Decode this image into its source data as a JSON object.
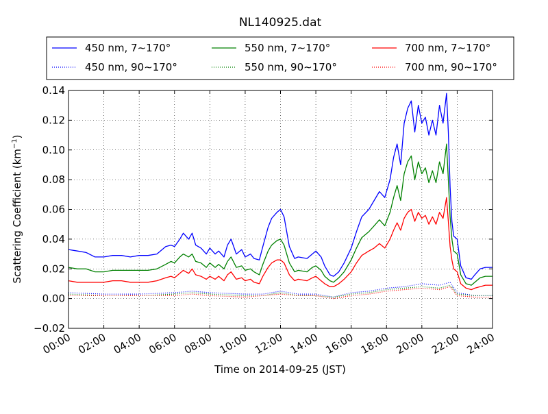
{
  "chart_data": {
    "type": "line",
    "title": "NL140925.dat",
    "xlabel": "Time on 2014-09-25 (JST)",
    "ylabel": "Scattering Coefficient (km",
    "ylabel_sup": "−1",
    "ylabel_end": ")",
    "xlim": [
      0,
      24
    ],
    "ylim": [
      -0.02,
      0.14
    ],
    "grid": true,
    "legend_position": "top (outside, above plot)",
    "x_ticks": [
      {
        "value": 0,
        "label": "00:00"
      },
      {
        "value": 2,
        "label": "02:00"
      },
      {
        "value": 4,
        "label": "04:00"
      },
      {
        "value": 6,
        "label": "06:00"
      },
      {
        "value": 8,
        "label": "08:00"
      },
      {
        "value": 10,
        "label": "10:00"
      },
      {
        "value": 12,
        "label": "12:00"
      },
      {
        "value": 14,
        "label": "14:00"
      },
      {
        "value": 16,
        "label": "16:00"
      },
      {
        "value": 18,
        "label": "18:00"
      },
      {
        "value": 20,
        "label": "20:00"
      },
      {
        "value": 22,
        "label": "22:00"
      },
      {
        "value": 24,
        "label": "24:00"
      }
    ],
    "y_ticks": [
      {
        "value": -0.02,
        "label": "−0.02"
      },
      {
        "value": 0.0,
        "label": "0.00"
      },
      {
        "value": 0.02,
        "label": "0.02"
      },
      {
        "value": 0.04,
        "label": "0.04"
      },
      {
        "value": 0.06,
        "label": "0.06"
      },
      {
        "value": 0.08,
        "label": "0.08"
      },
      {
        "value": 0.1,
        "label": "0.10"
      },
      {
        "value": 0.12,
        "label": "0.12"
      },
      {
        "value": 0.14,
        "label": "0.14"
      }
    ],
    "series": [
      {
        "name": "450 nm, 7∼170°",
        "color": "#0000ff",
        "style": "solid",
        "x": [
          0,
          0.5,
          1,
          1.5,
          2,
          2.5,
          3,
          3.5,
          4,
          4.5,
          5,
          5.5,
          5.8,
          6,
          6.3,
          6.5,
          6.8,
          7,
          7.2,
          7.5,
          7.8,
          8,
          8.3,
          8.5,
          8.8,
          9,
          9.2,
          9.5,
          9.8,
          10,
          10.3,
          10.5,
          10.8,
          11,
          11.3,
          11.5,
          11.8,
          12,
          12.2,
          12.5,
          12.8,
          13,
          13.5,
          13.8,
          14,
          14.3,
          14.5,
          14.8,
          15,
          15.3,
          15.6,
          16,
          16.3,
          16.6,
          17,
          17.3,
          17.6,
          17.9,
          18.2,
          18.4,
          18.6,
          18.8,
          19.0,
          19.2,
          19.4,
          19.6,
          19.8,
          20.0,
          20.2,
          20.4,
          20.6,
          20.8,
          21.0,
          21.2,
          21.4,
          21.5,
          21.6,
          21.7,
          21.8,
          22.0,
          22.2,
          22.5,
          22.8,
          23.0,
          23.3,
          23.6,
          24
        ],
        "y": [
          0.033,
          0.032,
          0.031,
          0.028,
          0.028,
          0.029,
          0.029,
          0.028,
          0.029,
          0.029,
          0.03,
          0.035,
          0.036,
          0.035,
          0.04,
          0.044,
          0.04,
          0.044,
          0.036,
          0.034,
          0.03,
          0.034,
          0.03,
          0.032,
          0.028,
          0.036,
          0.04,
          0.03,
          0.033,
          0.028,
          0.03,
          0.027,
          0.026,
          0.035,
          0.048,
          0.054,
          0.058,
          0.06,
          0.055,
          0.035,
          0.027,
          0.028,
          0.027,
          0.03,
          0.032,
          0.028,
          0.022,
          0.016,
          0.015,
          0.018,
          0.024,
          0.034,
          0.045,
          0.055,
          0.06,
          0.066,
          0.072,
          0.068,
          0.08,
          0.095,
          0.104,
          0.09,
          0.118,
          0.128,
          0.133,
          0.112,
          0.13,
          0.118,
          0.122,
          0.11,
          0.12,
          0.11,
          0.13,
          0.118,
          0.138,
          0.112,
          0.075,
          0.052,
          0.042,
          0.04,
          0.022,
          0.014,
          0.013,
          0.016,
          0.02,
          0.021,
          0.021
        ]
      },
      {
        "name": "550 nm, 7∼170°",
        "color": "#008000",
        "style": "solid",
        "x": [
          0,
          0.5,
          1,
          1.5,
          2,
          2.5,
          3,
          3.5,
          4,
          4.5,
          5,
          5.5,
          5.8,
          6,
          6.3,
          6.5,
          6.8,
          7,
          7.2,
          7.5,
          7.8,
          8,
          8.3,
          8.5,
          8.8,
          9,
          9.2,
          9.5,
          9.8,
          10,
          10.3,
          10.5,
          10.8,
          11,
          11.3,
          11.5,
          11.8,
          12,
          12.2,
          12.5,
          12.8,
          13,
          13.5,
          13.8,
          14,
          14.3,
          14.5,
          14.8,
          15,
          15.3,
          15.6,
          16,
          16.3,
          16.6,
          17,
          17.3,
          17.6,
          17.9,
          18.2,
          18.4,
          18.6,
          18.8,
          19.0,
          19.2,
          19.4,
          19.6,
          19.8,
          20.0,
          20.2,
          20.4,
          20.6,
          20.8,
          21.0,
          21.2,
          21.4,
          21.5,
          21.6,
          21.7,
          21.8,
          22.0,
          22.2,
          22.5,
          22.8,
          23.0,
          23.3,
          23.6,
          24
        ],
        "y": [
          0.021,
          0.02,
          0.02,
          0.018,
          0.018,
          0.019,
          0.019,
          0.019,
          0.019,
          0.019,
          0.02,
          0.023,
          0.025,
          0.024,
          0.028,
          0.03,
          0.028,
          0.03,
          0.025,
          0.024,
          0.021,
          0.024,
          0.021,
          0.023,
          0.02,
          0.025,
          0.028,
          0.021,
          0.022,
          0.019,
          0.02,
          0.018,
          0.016,
          0.023,
          0.032,
          0.036,
          0.039,
          0.04,
          0.036,
          0.024,
          0.018,
          0.019,
          0.018,
          0.021,
          0.022,
          0.019,
          0.015,
          0.012,
          0.011,
          0.014,
          0.018,
          0.026,
          0.034,
          0.041,
          0.045,
          0.049,
          0.053,
          0.049,
          0.058,
          0.068,
          0.076,
          0.066,
          0.084,
          0.092,
          0.096,
          0.08,
          0.092,
          0.084,
          0.088,
          0.078,
          0.086,
          0.078,
          0.092,
          0.084,
          0.104,
          0.08,
          0.055,
          0.04,
          0.032,
          0.03,
          0.016,
          0.01,
          0.009,
          0.011,
          0.014,
          0.015,
          0.015
        ]
      },
      {
        "name": "700 nm, 7∼170°",
        "color": "#ff0000",
        "style": "solid",
        "x": [
          0,
          0.5,
          1,
          1.5,
          2,
          2.5,
          3,
          3.5,
          4,
          4.5,
          5,
          5.5,
          5.8,
          6,
          6.3,
          6.5,
          6.8,
          7,
          7.2,
          7.5,
          7.8,
          8,
          8.3,
          8.5,
          8.8,
          9,
          9.2,
          9.5,
          9.8,
          10,
          10.3,
          10.5,
          10.8,
          11,
          11.3,
          11.5,
          11.8,
          12,
          12.2,
          12.5,
          12.8,
          13,
          13.5,
          13.8,
          14,
          14.3,
          14.5,
          14.8,
          15,
          15.3,
          15.6,
          16,
          16.3,
          16.6,
          17,
          17.3,
          17.6,
          17.9,
          18.2,
          18.4,
          18.6,
          18.8,
          19.0,
          19.2,
          19.4,
          19.6,
          19.8,
          20.0,
          20.2,
          20.4,
          20.6,
          20.8,
          21.0,
          21.2,
          21.4,
          21.5,
          21.6,
          21.7,
          21.8,
          22.0,
          22.2,
          22.5,
          22.8,
          23.0,
          23.3,
          23.6,
          24
        ],
        "y": [
          0.012,
          0.011,
          0.011,
          0.011,
          0.011,
          0.012,
          0.012,
          0.011,
          0.011,
          0.011,
          0.012,
          0.014,
          0.015,
          0.014,
          0.017,
          0.019,
          0.017,
          0.02,
          0.016,
          0.015,
          0.013,
          0.015,
          0.013,
          0.015,
          0.012,
          0.016,
          0.018,
          0.013,
          0.014,
          0.012,
          0.013,
          0.011,
          0.01,
          0.015,
          0.021,
          0.024,
          0.026,
          0.026,
          0.024,
          0.016,
          0.012,
          0.013,
          0.012,
          0.014,
          0.015,
          0.012,
          0.01,
          0.008,
          0.008,
          0.01,
          0.013,
          0.018,
          0.024,
          0.029,
          0.032,
          0.034,
          0.037,
          0.034,
          0.04,
          0.046,
          0.051,
          0.046,
          0.054,
          0.058,
          0.06,
          0.052,
          0.058,
          0.054,
          0.056,
          0.05,
          0.055,
          0.05,
          0.058,
          0.054,
          0.068,
          0.052,
          0.035,
          0.026,
          0.02,
          0.018,
          0.01,
          0.007,
          0.006,
          0.007,
          0.008,
          0.009,
          0.009
        ]
      },
      {
        "name": "450 nm, 90∼170°",
        "color": "#0000ff",
        "style": "dotted",
        "x": [
          0,
          2,
          4,
          6,
          7,
          8,
          10,
          11,
          12,
          13,
          14,
          15,
          16,
          17,
          18,
          19,
          20,
          21,
          21.6,
          22,
          23,
          24
        ],
        "y": [
          0.004,
          0.003,
          0.003,
          0.004,
          0.005,
          0.004,
          0.003,
          0.003,
          0.005,
          0.003,
          0.003,
          0.001,
          0.004,
          0.005,
          0.007,
          0.008,
          0.01,
          0.009,
          0.011,
          0.004,
          0.002,
          0.002
        ]
      },
      {
        "name": "550 nm, 90∼170°",
        "color": "#008000",
        "style": "dotted",
        "x": [
          0,
          2,
          4,
          6,
          7,
          8,
          10,
          11,
          12,
          13,
          14,
          15,
          16,
          17,
          18,
          19,
          20,
          21,
          21.6,
          22,
          23,
          24
        ],
        "y": [
          0.003,
          0.002,
          0.002,
          0.003,
          0.004,
          0.003,
          0.002,
          0.002,
          0.004,
          0.002,
          0.002,
          0.001,
          0.003,
          0.004,
          0.006,
          0.007,
          0.008,
          0.007,
          0.009,
          0.003,
          0.002,
          0.002
        ]
      },
      {
        "name": "700 nm, 90∼170°",
        "color": "#ff0000",
        "style": "dotted",
        "x": [
          0,
          2,
          4,
          6,
          7,
          8,
          10,
          11,
          12,
          13,
          14,
          15,
          16,
          17,
          18,
          19,
          20,
          21,
          21.6,
          22,
          23,
          24
        ],
        "y": [
          0.002,
          0.002,
          0.002,
          0.002,
          0.003,
          0.002,
          0.001,
          0.002,
          0.003,
          0.002,
          0.002,
          0.0,
          0.002,
          0.003,
          0.005,
          0.006,
          0.007,
          0.006,
          0.008,
          0.002,
          0.001,
          0.001
        ]
      }
    ]
  }
}
